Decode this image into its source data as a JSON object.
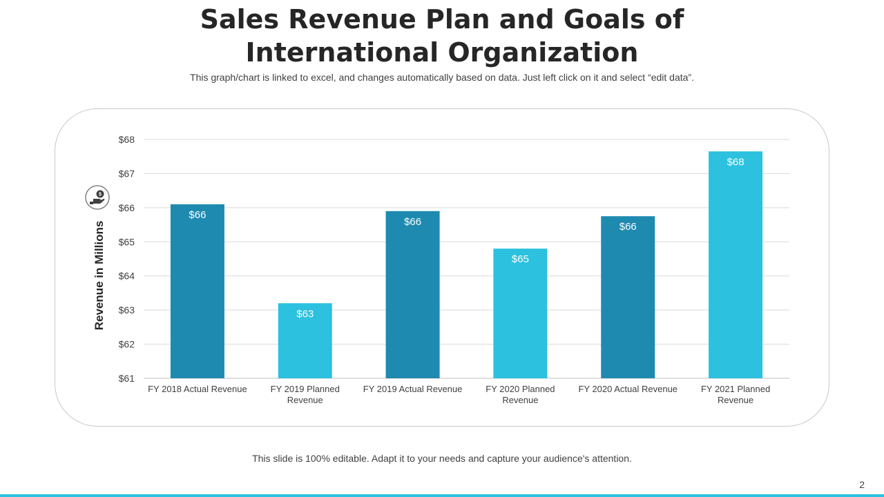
{
  "slide": {
    "title_line1": "Sales Revenue Plan and Goals of",
    "title_line2": "International Organization",
    "subtitle": "This graph/chart is linked to excel, and changes automatically based on data. Just left click on it and select “edit data”.",
    "footer": "This slide is 100% editable. Adapt it to your needs and capture your audience's attention.",
    "page_number": "2",
    "icon": "money-hand-icon"
  },
  "colors": {
    "dark_bar": "#1e8ab0",
    "light_bar": "#2bc1df",
    "accent_bar": "#2bc1df",
    "grid": "#d9d9d9",
    "text": "#404040"
  },
  "chart_data": {
    "type": "bar",
    "title": "Sales Revenue Plan and Goals of International Organization",
    "xlabel": "",
    "ylabel": "Revenue in Millions",
    "ylim": [
      61,
      68
    ],
    "y_ticks": [
      61,
      62,
      63,
      64,
      65,
      66,
      67,
      68
    ],
    "y_tick_labels": [
      "$61",
      "$62",
      "$63",
      "$64",
      "$65",
      "$66",
      "$67",
      "$68"
    ],
    "grid": true,
    "categories": [
      [
        "FY 2018 Actual Revenue"
      ],
      [
        "FY 2019  Planned",
        "Revenue"
      ],
      [
        "FY 2019 Actual Revenue"
      ],
      [
        "FY 2020 Planned",
        "Revenue"
      ],
      [
        "FY 2020 Actual Revenue"
      ],
      [
        "FY 2021 Planned",
        "Revenue"
      ]
    ],
    "values": [
      66.1,
      63.2,
      65.9,
      64.8,
      65.75,
      67.65
    ],
    "data_labels": [
      "$66",
      "$63",
      "$66",
      "$65",
      "$66",
      "$68"
    ],
    "bar_kind": [
      "actual",
      "planned",
      "actual",
      "planned",
      "actual",
      "planned"
    ]
  }
}
